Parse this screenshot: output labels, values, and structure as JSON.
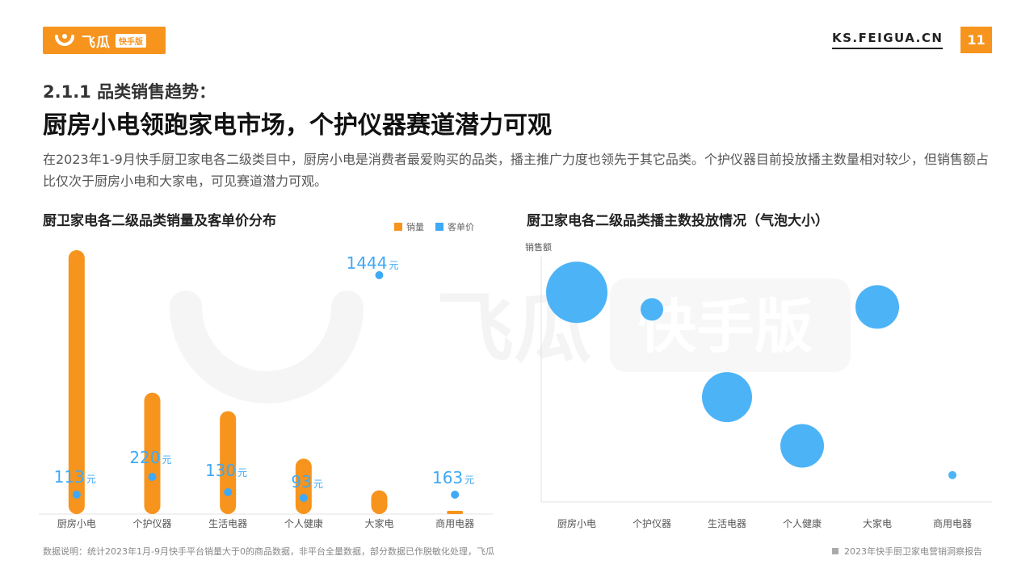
{
  "header": {
    "logo_text": "飞瓜",
    "logo_badge": "快手版",
    "site": "KS.FEIGUA.CN",
    "page_number": "11"
  },
  "headline": {
    "subtitle": "2.1.1 品类销售趋势：",
    "title": "厨房小电领跑家电市场，个护仪器赛道潜力可观",
    "description": "在2023年1-9月快手厨卫家电各二级类目中，厨房小电是消费者最爱购买的品类，播主推广力度也领先于其它品类。个护仪器目前投放播主数量相对较少，但销售额占比仅次于厨房小电和大家电，可见赛道潜力可观。"
  },
  "colors": {
    "brand": "#f7941d",
    "bar": "#f7941d",
    "dot": "#3fa9f5",
    "bubble": "#4db3f7",
    "price_label": "#3fa9f5"
  },
  "chart_data": [
    {
      "type": "bar",
      "title": "厨卫家电各二级品类销量及客单价分布",
      "categories": [
        "厨房小电",
        "个护仪器",
        "生活电器",
        "个人健康",
        "大家电",
        "商用电器"
      ],
      "series": [
        {
          "name": "销量",
          "values": [
            100,
            46,
            39,
            21,
            9,
            1
          ]
        },
        {
          "name": "客单价",
          "values": [
            113,
            220,
            130,
            93,
            1444,
            163
          ]
        }
      ],
      "price_labels": [
        "113",
        "220",
        "130",
        "93",
        "1444",
        "163"
      ],
      "price_unit": "元",
      "legend": "top-right"
    },
    {
      "type": "scatter",
      "title": "厨卫家电各二级品类播主数投放情况（气泡大小）",
      "ylabel": "销售额",
      "categories": [
        "厨房小电",
        "个护仪器",
        "生活电器",
        "个人健康",
        "大家电",
        "商用电器"
      ],
      "y_values": [
        86,
        79,
        43,
        23,
        80,
        11
      ],
      "bubble_size": [
        38,
        14,
        31,
        27,
        27,
        5
      ]
    }
  ],
  "footer": {
    "note": "数据说明：统计2023年1月-9月快手平台销量大于0的商品数据，非平台全量数据，部分数据已作脱敏化处理，飞瓜",
    "report": "2023年快手厨卫家电营销洞察报告"
  },
  "watermark": {
    "text": "飞瓜",
    "badge": "快手版"
  }
}
